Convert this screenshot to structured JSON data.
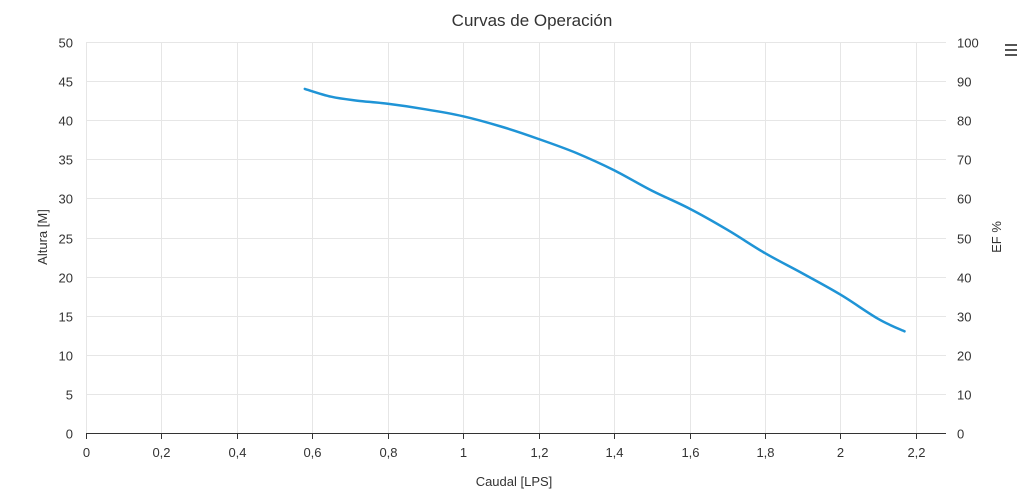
{
  "chart_data": {
    "type": "line",
    "title": "Curvas de Operación",
    "xlabel": "Caudal [LPS]",
    "ylabel": "Altura [M]",
    "y2label": "EF %",
    "xlim": [
      0,
      2.28
    ],
    "ylim": [
      0,
      50
    ],
    "y2lim": [
      0,
      100
    ],
    "x_ticks": [
      0,
      0.2,
      0.4,
      0.6,
      0.8,
      1,
      1.2,
      1.4,
      1.6,
      1.8,
      2,
      2.2
    ],
    "x_tick_labels": [
      "0",
      "0,2",
      "0,4",
      "0,6",
      "0,8",
      "1",
      "1,2",
      "1,4",
      "1,6",
      "1,8",
      "2",
      "2,2"
    ],
    "y_ticks": [
      0,
      5,
      10,
      15,
      20,
      25,
      30,
      35,
      40,
      45,
      50
    ],
    "y2_ticks": [
      0,
      10,
      20,
      30,
      40,
      50,
      60,
      70,
      80,
      90,
      100
    ],
    "grid": true,
    "series": [
      {
        "color": "#1f94d6",
        "x": [
          0.58,
          0.65,
          0.72,
          0.8,
          0.9,
          1.0,
          1.1,
          1.2,
          1.3,
          1.4,
          1.5,
          1.6,
          1.7,
          1.8,
          1.9,
          2.0,
          2.1,
          2.17
        ],
        "y": [
          44.0,
          43.0,
          42.5,
          42.1,
          41.4,
          40.5,
          39.2,
          37.6,
          35.8,
          33.6,
          31.0,
          28.7,
          26.0,
          23.0,
          20.4,
          17.7,
          14.6,
          13.0
        ]
      }
    ]
  },
  "menu": {
    "icon": "hamburger-menu-icon"
  }
}
